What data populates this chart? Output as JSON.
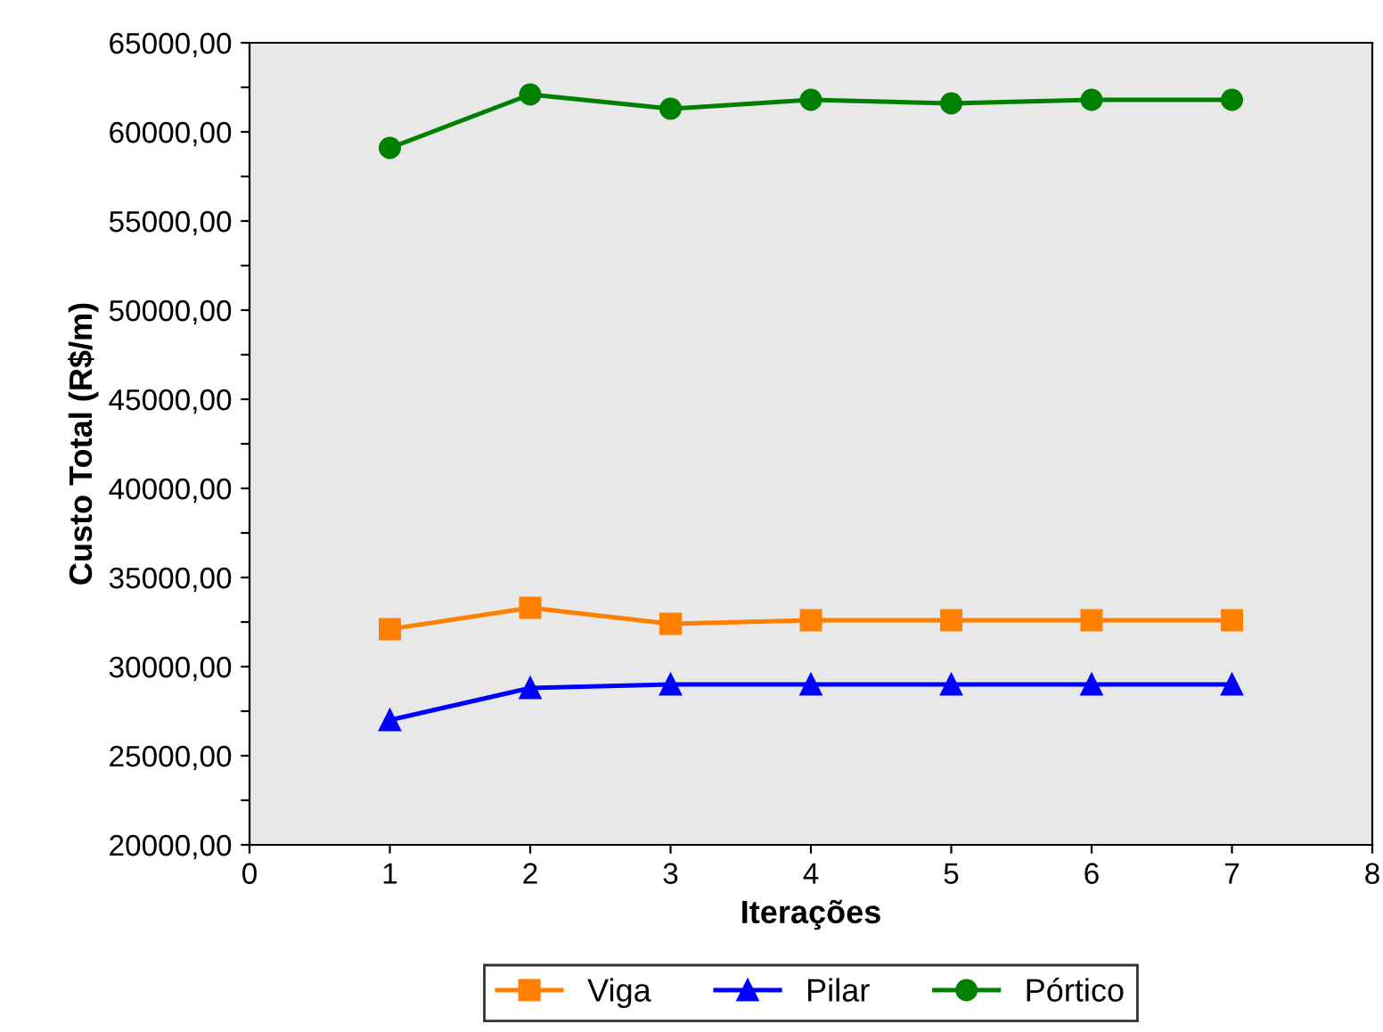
{
  "chart_data": {
    "type": "line",
    "xlabel": "Iterações",
    "ylabel": "Custo Total (R$/m)",
    "x": [
      1,
      2,
      3,
      4,
      5,
      6,
      7
    ],
    "series": [
      {
        "name": "Viga",
        "color": "#ff7f00",
        "marker": "square",
        "values": [
          32100,
          33300,
          32400,
          32600,
          32600,
          32600,
          32600
        ]
      },
      {
        "name": "Pilar",
        "color": "#0000ff",
        "marker": "triangle",
        "values": [
          27000,
          28800,
          29000,
          29000,
          29000,
          29000,
          29000
        ]
      },
      {
        "name": "Pórtico",
        "color": "#008000",
        "marker": "circle",
        "values": [
          59100,
          62100,
          61300,
          61800,
          61600,
          61800,
          61800
        ]
      }
    ],
    "xlim": [
      0,
      8
    ],
    "xticks": [
      0,
      1,
      2,
      3,
      4,
      5,
      6,
      7,
      8
    ],
    "ylim": [
      20000,
      65000
    ],
    "yticks": [
      {
        "value": 20000,
        "label": "20000,00"
      },
      {
        "value": 22500,
        "label": null
      },
      {
        "value": 25000,
        "label": "25000,00"
      },
      {
        "value": 27500,
        "label": null
      },
      {
        "value": 30000,
        "label": "30000,00"
      },
      {
        "value": 32500,
        "label": null
      },
      {
        "value": 35000,
        "label": "35000,00"
      },
      {
        "value": 37500,
        "label": null
      },
      {
        "value": 40000,
        "label": "40000,00"
      },
      {
        "value": 42500,
        "label": null
      },
      {
        "value": 45000,
        "label": "45000,00"
      },
      {
        "value": 47500,
        "label": null
      },
      {
        "value": 50000,
        "label": "50000,00"
      },
      {
        "value": 52500,
        "label": null
      },
      {
        "value": 55000,
        "label": "55000,00"
      },
      {
        "value": 57500,
        "label": null
      },
      {
        "value": 60000,
        "label": "60000,00"
      },
      {
        "value": 62500,
        "label": null
      },
      {
        "value": 65000,
        "label": "65000,00"
      }
    ],
    "grid": false,
    "legend": "bottom",
    "line_style": "solid"
  }
}
